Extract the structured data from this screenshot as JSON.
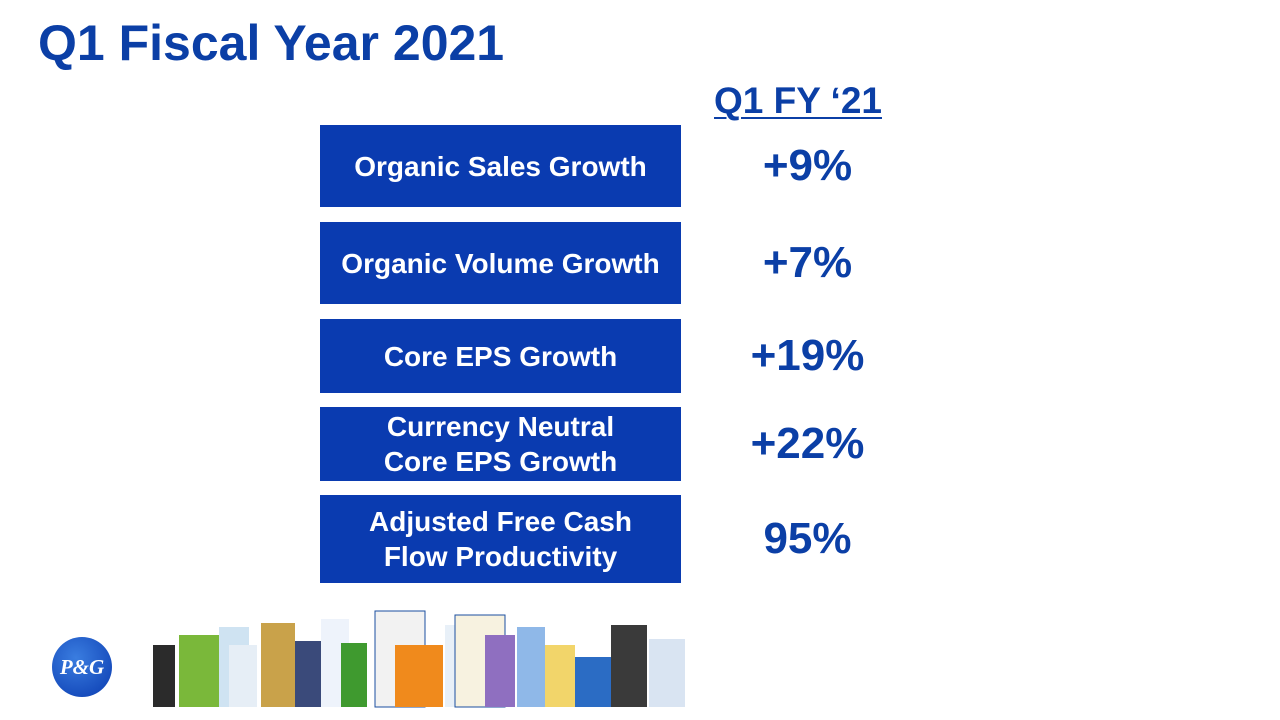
{
  "header": {
    "title": "Q1 Fiscal Year 2021",
    "column_header": "Q1 FY ‘21"
  },
  "rows": [
    {
      "label": [
        "Organic Sales Growth"
      ],
      "value": "+9%"
    },
    {
      "label": [
        "Organic Volume Growth"
      ],
      "value": "+7%"
    },
    {
      "label": [
        "Core EPS Growth"
      ],
      "value": "+19%"
    },
    {
      "label": [
        "Currency Neutral",
        "Core EPS Growth"
      ],
      "value": "+22%"
    },
    {
      "label": [
        "Adjusted Free Cash",
        "Flow Productivity"
      ],
      "value": "95%"
    }
  ],
  "logo": {
    "text": "P&G"
  }
}
